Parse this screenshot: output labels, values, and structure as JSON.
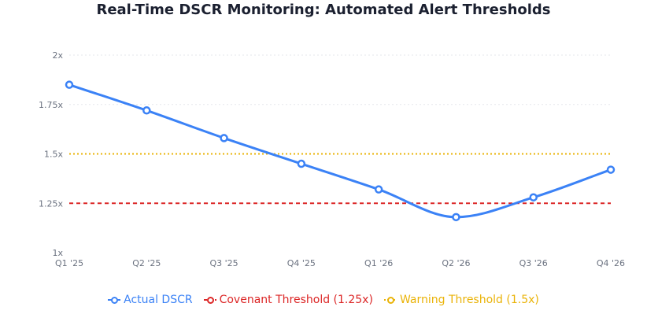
{
  "chart_data": {
    "type": "line",
    "title": "Real-Time DSCR Monitoring: Automated Alert Thresholds",
    "xlabel": "",
    "ylabel": "",
    "categories": [
      "Q1 '25",
      "Q2 '25",
      "Q3 '25",
      "Q4 '25",
      "Q1 '26",
      "Q2 '26",
      "Q3 '26",
      "Q4 '26"
    ],
    "y_ticks": [
      "1x",
      "1.25x",
      "1.5x",
      "1.75x",
      "2x"
    ],
    "ylim": [
      1,
      2
    ],
    "grid": "horizontal dotted",
    "legend_position": "bottom",
    "series": [
      {
        "name": "Actual DSCR",
        "values": [
          1.85,
          1.72,
          1.58,
          1.45,
          1.32,
          1.18,
          1.28,
          1.42
        ],
        "color": "#3b82f6",
        "style": "solid-smooth-with-markers"
      },
      {
        "name": "Covenant Threshold (1.25x)",
        "values": [
          1.25,
          1.25,
          1.25,
          1.25,
          1.25,
          1.25,
          1.25,
          1.25
        ],
        "color": "#dc2626",
        "style": "dashed"
      },
      {
        "name": "Warning Threshold (1.5x)",
        "values": [
          1.5,
          1.5,
          1.5,
          1.5,
          1.5,
          1.5,
          1.5,
          1.5
        ],
        "color": "#eab308",
        "style": "dotted"
      }
    ]
  }
}
